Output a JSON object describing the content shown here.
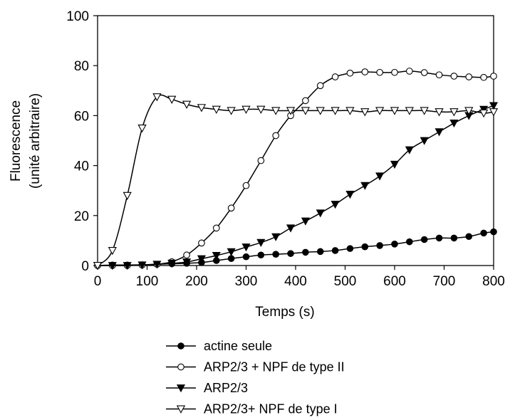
{
  "chart_data": {
    "type": "line",
    "title": "",
    "xlabel": "Temps (s)",
    "ylabel_lines": [
      "Fluorescence",
      "(unité arbitraire)"
    ],
    "xlim": [
      0,
      800
    ],
    "ylim": [
      0,
      100
    ],
    "xticks": [
      "0",
      "100",
      "200",
      "300",
      "400",
      "500",
      "600",
      "700",
      "800"
    ],
    "yticks": [
      "0",
      "20",
      "40",
      "60",
      "80",
      "100"
    ],
    "grid": false,
    "legend_position": "bottom",
    "series": [
      {
        "name": "actine seule",
        "marker": "circle-filled",
        "x": [
          0,
          30,
          60,
          90,
          120,
          150,
          180,
          210,
          240,
          270,
          300,
          330,
          360,
          390,
          420,
          450,
          480,
          510,
          540,
          570,
          600,
          630,
          660,
          690,
          720,
          750,
          780,
          800
        ],
        "y": [
          0,
          0.2,
          0.2,
          0.3,
          0.5,
          0.7,
          0.9,
          1.2,
          2,
          2.8,
          3.5,
          4.2,
          4.5,
          4.8,
          5.3,
          5.6,
          6,
          6.8,
          7.5,
          8,
          8.6,
          9.5,
          10.4,
          11,
          11,
          11.6,
          13,
          13.5
        ]
      },
      {
        "name": "ARP2/3 + NPF de type II",
        "marker": "circle-open",
        "x": [
          0,
          30,
          60,
          90,
          120,
          150,
          180,
          210,
          240,
          270,
          300,
          330,
          360,
          390,
          420,
          450,
          480,
          510,
          540,
          570,
          600,
          630,
          660,
          690,
          720,
          750,
          780,
          800
        ],
        "y": [
          0,
          0,
          0,
          0.2,
          0.5,
          1.5,
          4.2,
          9,
          15,
          23,
          32,
          42,
          52,
          60,
          66,
          72,
          75.5,
          77,
          77.5,
          77.3,
          77.3,
          77.8,
          77.2,
          76.3,
          75.8,
          75.5,
          75.3,
          75.8
        ]
      },
      {
        "name": "ARP2/3",
        "marker": "triangle-down-filled",
        "x": [
          0,
          30,
          60,
          90,
          120,
          150,
          180,
          210,
          240,
          270,
          300,
          330,
          360,
          390,
          420,
          450,
          480,
          510,
          540,
          570,
          600,
          630,
          660,
          690,
          720,
          750,
          780,
          800
        ],
        "y": [
          0,
          0,
          0,
          0.2,
          0.5,
          0.9,
          1.4,
          2.7,
          4,
          5.5,
          7.4,
          9.2,
          11.5,
          15,
          17.8,
          21,
          24.5,
          28.5,
          32,
          35.8,
          40.5,
          46.3,
          50,
          53.5,
          57,
          60,
          62.5,
          64
        ]
      },
      {
        "name": "ARP2/3+ NPF de type I",
        "marker": "triangle-down-open",
        "x": [
          0,
          30,
          60,
          90,
          120,
          150,
          180,
          210,
          240,
          270,
          300,
          330,
          360,
          390,
          420,
          450,
          480,
          510,
          540,
          570,
          600,
          630,
          660,
          690,
          720,
          750,
          780,
          800
        ],
        "y": [
          0,
          6,
          28,
          55,
          67.5,
          66.5,
          64.5,
          63.2,
          62.5,
          62,
          62.5,
          62.5,
          62,
          62,
          62,
          62,
          62,
          62,
          61.5,
          62,
          62,
          62,
          62,
          61.5,
          61.5,
          62,
          61,
          61.5
        ]
      }
    ]
  }
}
